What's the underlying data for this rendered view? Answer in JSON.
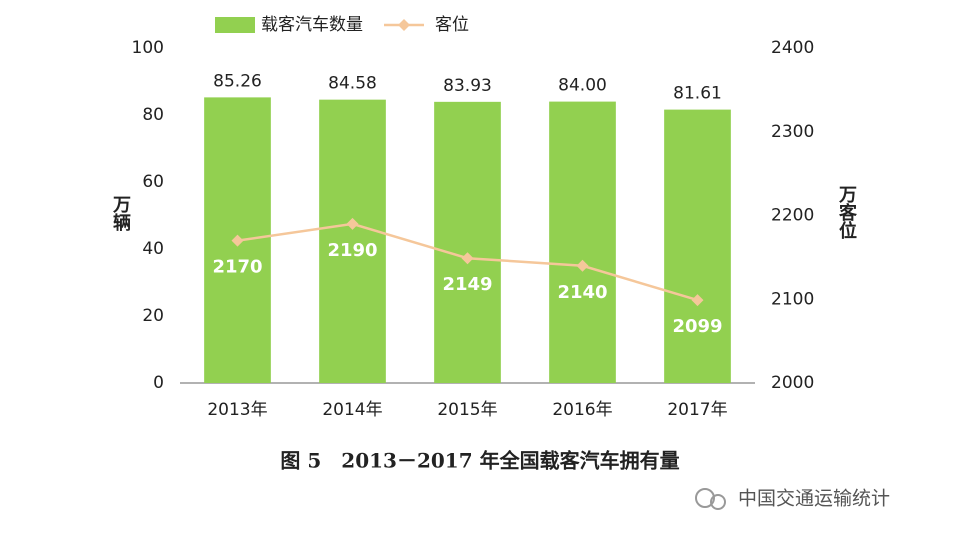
{
  "chart_data": {
    "type": "bar",
    "categories": [
      "2013年",
      "2014年",
      "2015年",
      "2016年",
      "2017年"
    ],
    "series": [
      {
        "name": "载客汽车数量",
        "type": "bar",
        "color": "#92d050",
        "values": [
          85.26,
          84.58,
          83.93,
          84.0,
          81.61
        ],
        "value_labels": [
          "85.26",
          "84.58",
          "83.93",
          "84.00",
          "81.61"
        ]
      },
      {
        "name": "客位",
        "type": "line",
        "axis": "y2",
        "color": "#f5c79a",
        "values": [
          2170,
          2190,
          2149,
          2140,
          2099
        ]
      }
    ],
    "ylabel": "万辆",
    "y2label": "万客位",
    "ylim": [
      0,
      100
    ],
    "yticks": [
      0,
      20,
      40,
      60,
      80,
      100
    ],
    "y2lim": [
      2000,
      2400
    ],
    "y2ticks": [
      2000,
      2100,
      2200,
      2300,
      2400
    ],
    "grid": false,
    "legend": "top",
    "caption": "图 5　2013－2017 年全国载客汽车拥有量"
  },
  "watermark": "中国交通运输统计"
}
